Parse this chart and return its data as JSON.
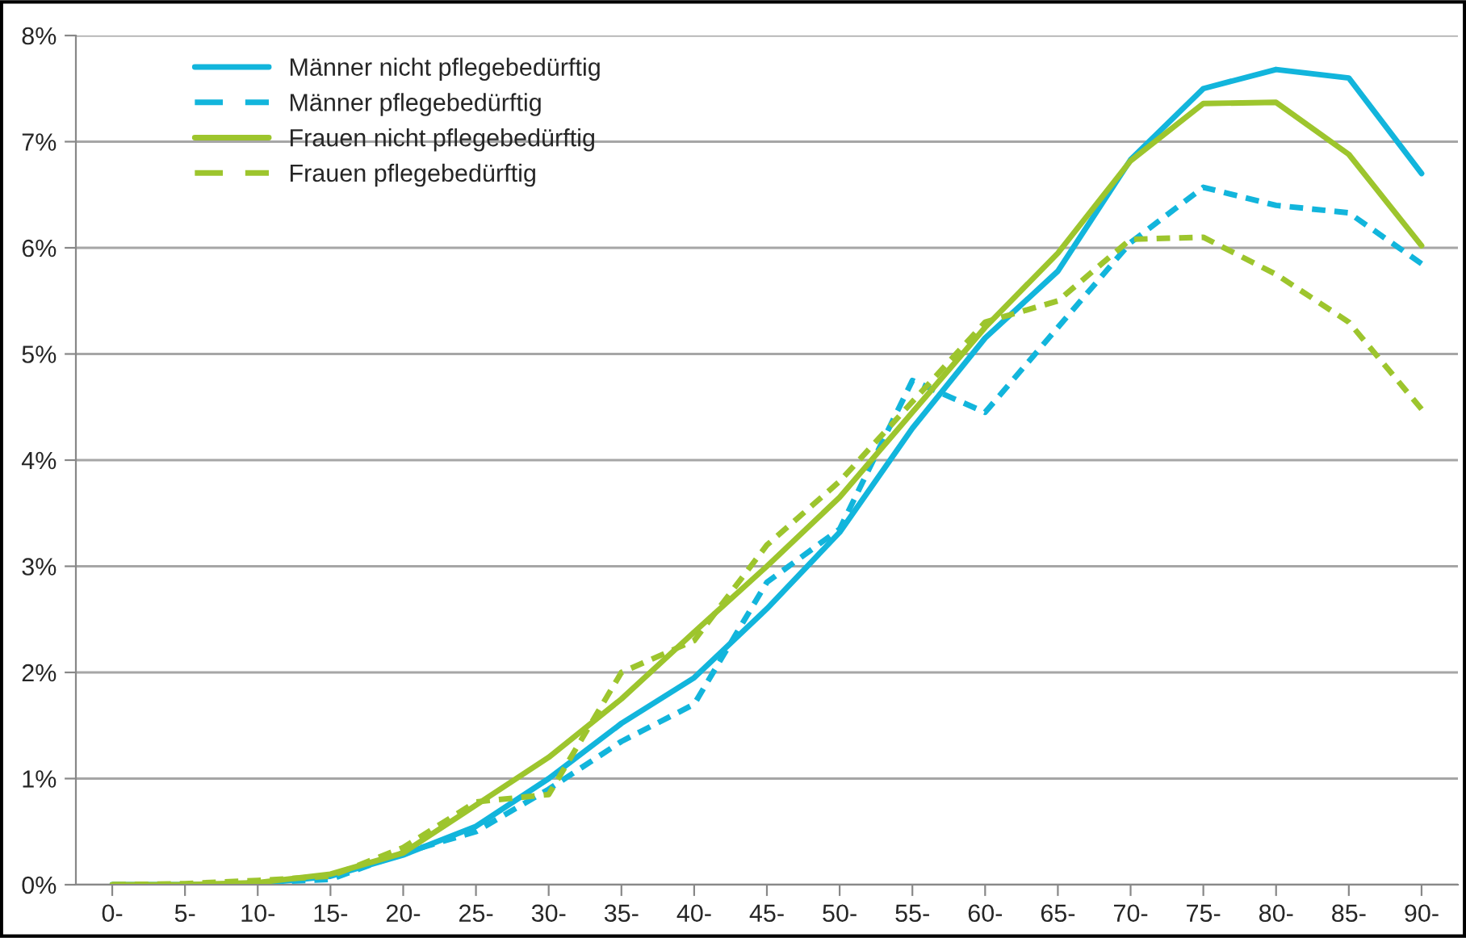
{
  "chart_data": {
    "type": "line",
    "categories": [
      "0-",
      "5-",
      "10-",
      "15-",
      "20-",
      "25-",
      "30-",
      "35-",
      "40-",
      "45-",
      "50-",
      "55-",
      "60-",
      "65-",
      "70-",
      "75-",
      "80-",
      "85-",
      "90-"
    ],
    "series": [
      {
        "name": "Männer nicht pflegebedürftig",
        "color": "#12b5dc",
        "line_style": "solid",
        "values": [
          0,
          0,
          0.01,
          0.08,
          0.28,
          0.55,
          1.0,
          1.52,
          1.95,
          2.6,
          3.32,
          4.3,
          5.15,
          5.78,
          6.83,
          7.5,
          7.68,
          7.6,
          6.7
        ]
      },
      {
        "name": "Männer pflegebedürftig",
        "color": "#12b5dc",
        "line_style": "dashed",
        "values": [
          0,
          0,
          0.02,
          0.05,
          0.3,
          0.5,
          0.9,
          1.35,
          1.7,
          2.85,
          3.35,
          4.75,
          4.45,
          5.25,
          6.05,
          6.57,
          6.4,
          6.33,
          5.85
        ]
      },
      {
        "name": "Frauen nicht pflegebedürftig",
        "color": "#9dc52d",
        "line_style": "solid",
        "values": [
          0,
          0,
          0.02,
          0.1,
          0.3,
          0.75,
          1.2,
          1.75,
          2.38,
          3.0,
          3.65,
          4.45,
          5.25,
          5.95,
          6.82,
          7.36,
          7.37,
          6.88,
          6.02
        ]
      },
      {
        "name": "Frauen pflegebedürftig",
        "color": "#9dc52d",
        "line_style": "dashed",
        "values": [
          0,
          0.01,
          0.04,
          0.08,
          0.35,
          0.78,
          0.85,
          2.0,
          2.3,
          3.2,
          3.8,
          4.55,
          5.3,
          5.5,
          6.08,
          6.1,
          5.75,
          5.3,
          4.48
        ]
      }
    ],
    "ylim": [
      0,
      8
    ],
    "yticks": [
      {
        "value": 0,
        "label": "0%"
      },
      {
        "value": 1,
        "label": "1%"
      },
      {
        "value": 2,
        "label": "2%"
      },
      {
        "value": 3,
        "label": "3%"
      },
      {
        "value": 4,
        "label": "4%"
      },
      {
        "value": 5,
        "label": "5%"
      },
      {
        "value": 6,
        "label": "6%"
      },
      {
        "value": 7,
        "label": "7%"
      },
      {
        "value": 8,
        "label": "8%"
      }
    ],
    "grid": "y",
    "legend": "top left",
    "marker": "none"
  }
}
